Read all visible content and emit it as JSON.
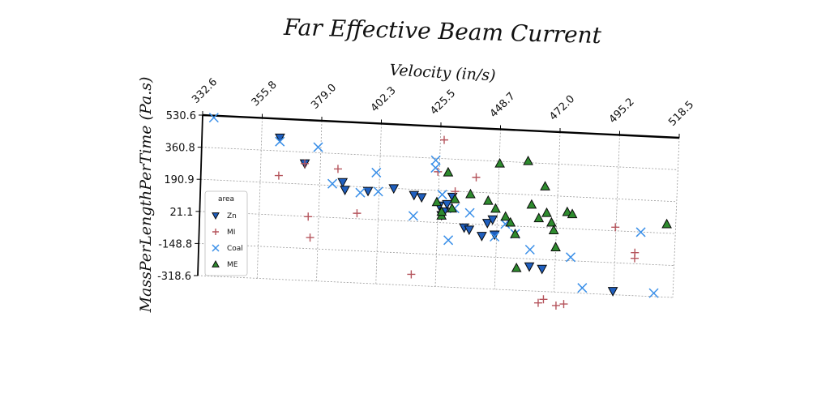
{
  "chart_data": {
    "type": "scatter",
    "title": "Far Effective Beam Current",
    "xlabel": "Velocity (in/s)",
    "ylabel": "MassPerLengthPerTime (Pa.s)",
    "x_ticks": [
      "332.6",
      "355.8",
      "379.0",
      "402.3",
      "425.5",
      "448.7",
      "472.0",
      "495.2",
      "518.5"
    ],
    "y_ticks": [
      "530.6",
      "360.8",
      "190.9",
      "21.1",
      "-148.8",
      "-318.6"
    ],
    "xlim": [
      332.6,
      518.5
    ],
    "ylim": [
      -318.6,
      530.6
    ],
    "x_axis_position": "top",
    "grid": true,
    "legend": {
      "title": "area",
      "position": "left"
    },
    "series": [
      {
        "name": "Zn",
        "marker": "triangle-down",
        "color": "#1f5fbf",
        "points": [
          [
            363,
            430
          ],
          [
            373,
            300
          ],
          [
            388,
            210
          ],
          [
            389,
            170
          ],
          [
            398,
            170
          ],
          [
            408,
            190
          ],
          [
            416,
            160
          ],
          [
            419,
            150
          ],
          [
            426,
            110
          ],
          [
            427,
            60
          ],
          [
            428,
            80
          ],
          [
            429,
            120
          ],
          [
            431,
            160
          ],
          [
            436,
            0
          ],
          [
            438,
            -10
          ],
          [
            443,
            -40
          ],
          [
            445,
            30
          ],
          [
            447,
            50
          ],
          [
            448,
            -30
          ],
          [
            462,
            -190
          ],
          [
            467,
            -200
          ],
          [
            495,
            -300
          ]
        ]
      },
      {
        "name": "MI",
        "marker": "plus",
        "color": "#b5545c",
        "points": [
          [
            363,
            230
          ],
          [
            373,
            300
          ],
          [
            375,
            20
          ],
          [
            376,
            -90
          ],
          [
            386,
            280
          ],
          [
            394,
            50
          ],
          [
            416,
            -260
          ],
          [
            425,
            290
          ],
          [
            427,
            460
          ],
          [
            432,
            190
          ],
          [
            440,
            270
          ],
          [
            466,
            -380
          ],
          [
            468,
            -360
          ],
          [
            473,
            -390
          ],
          [
            476,
            -380
          ],
          [
            495,
            40
          ],
          [
            503,
            -120
          ],
          [
            503,
            -90
          ]
        ]
      },
      {
        "name": "Coal",
        "marker": "x",
        "color": "#3a8fe8",
        "points": [
          [
            337,
            520
          ],
          [
            363,
            410
          ],
          [
            378,
            390
          ],
          [
            384,
            200
          ],
          [
            395,
            160
          ],
          [
            401,
            270
          ],
          [
            402,
            170
          ],
          [
            416,
            50
          ],
          [
            424,
            310
          ],
          [
            424,
            350
          ],
          [
            427,
            170
          ],
          [
            430,
            -70
          ],
          [
            432,
            100
          ],
          [
            438,
            80
          ],
          [
            448,
            -40
          ],
          [
            452,
            30
          ],
          [
            456,
            -20
          ],
          [
            462,
            -100
          ],
          [
            478,
            -130
          ],
          [
            483,
            -290
          ],
          [
            505,
            20
          ],
          [
            511,
            -300
          ]
        ]
      },
      {
        "name": "ME",
        "marker": "triangle-up",
        "color": "#2e8b2e",
        "points": [
          [
            425,
            130
          ],
          [
            427,
            60
          ],
          [
            427,
            80
          ],
          [
            429,
            290
          ],
          [
            431,
            100
          ],
          [
            432,
            150
          ],
          [
            438,
            180
          ],
          [
            445,
            150
          ],
          [
            448,
            110
          ],
          [
            449,
            350
          ],
          [
            452,
            70
          ],
          [
            454,
            40
          ],
          [
            456,
            -20
          ],
          [
            457,
            -200
          ],
          [
            460,
            370
          ],
          [
            462,
            140
          ],
          [
            465,
            70
          ],
          [
            467,
            240
          ],
          [
            468,
            100
          ],
          [
            470,
            50
          ],
          [
            471,
            10
          ],
          [
            472,
            -80
          ],
          [
            476,
            110
          ],
          [
            478,
            100
          ],
          [
            515,
            70
          ]
        ]
      }
    ]
  }
}
